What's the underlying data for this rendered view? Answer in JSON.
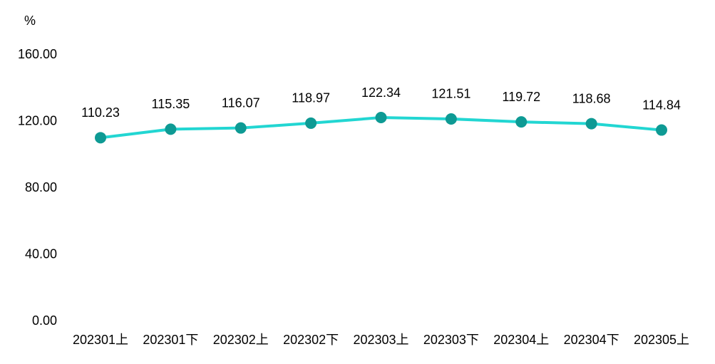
{
  "chart_data": {
    "type": "line",
    "y_label": "%",
    "categories": [
      "202301上",
      "202301下",
      "202302上",
      "202302下",
      "202303上",
      "202303下",
      "202304上",
      "202304下",
      "202305上"
    ],
    "values": [
      110.23,
      115.35,
      116.07,
      118.97,
      122.34,
      121.51,
      119.72,
      118.68,
      114.84
    ],
    "color": "#22d6d2",
    "marker_color": "#0e9a94",
    "ylim": [
      0,
      160
    ],
    "yticks": [
      {
        "value": 0,
        "label": "0.00"
      },
      {
        "value": 40,
        "label": "40.00"
      },
      {
        "value": 80,
        "label": "80.00"
      },
      {
        "value": 120,
        "label": "120.00"
      },
      {
        "value": 160,
        "label": "160.00"
      }
    ],
    "grid": false
  }
}
